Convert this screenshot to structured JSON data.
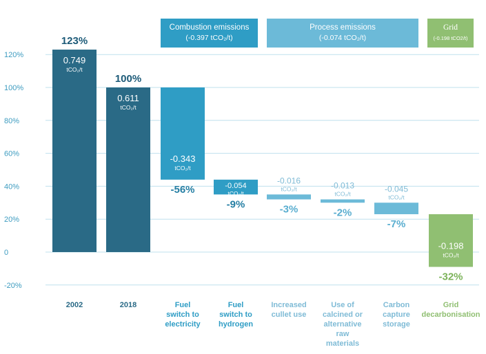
{
  "colors": {
    "base": "#2a6a86",
    "combustion": "#2f9dc5",
    "process": "#6cbad8",
    "grid": "#90bf72",
    "axis_text": "#3e9cc0",
    "gridline": "#bfe0ee",
    "pct_base": "#1c5a78",
    "pct_comb": "#267fa4",
    "pct_proc": "#5aaed0",
    "pct_grid": "#7cb35a",
    "label_proc": "#7fbbd6"
  },
  "headers": {
    "combustion": {
      "line1": "Combustion emissions",
      "line2": "(-0.397 tCO₂/t)"
    },
    "process": {
      "line1": "Process emissions",
      "line2": "(-0.074 tCO₂/t)"
    },
    "grid": {
      "line1": "Grid",
      "line2": "(-0.198 tCO2/t)"
    }
  },
  "chart_data": {
    "type": "bar",
    "subtype": "waterfall",
    "ylim": [
      -20,
      125
    ],
    "yticks": [
      -20,
      0,
      20,
      40,
      60,
      80,
      100,
      120
    ],
    "ytick_labels": [
      "-20%",
      "0",
      "20%",
      "40%",
      "60%",
      "80%",
      "100%",
      "120%"
    ],
    "grid": true,
    "categories": [
      [
        "2002"
      ],
      [
        "2018"
      ],
      [
        "Fuel",
        "switch to",
        "electricity"
      ],
      [
        "Fuel",
        "switch to",
        "hydrogen"
      ],
      [
        "Increased",
        "cullet use"
      ],
      [
        "Use of",
        "calcined or",
        "alternative",
        "raw",
        "materials"
      ],
      [
        "Carbon",
        "capture",
        "storage"
      ],
      [
        "Grid",
        "decarbonisation"
      ]
    ],
    "bars": [
      {
        "kind": "base",
        "start": 0,
        "end": 123,
        "group": "base",
        "value": "0.749",
        "unit": "tCO₂/t",
        "pct": "123%",
        "pct_pos": "above",
        "value_pos": "inside"
      },
      {
        "kind": "base",
        "start": 0,
        "end": 100,
        "group": "base",
        "value": "0.611",
        "unit": "tCO₂/t",
        "pct": "100%",
        "pct_pos": "above",
        "value_pos": "inside"
      },
      {
        "kind": "delta",
        "start": 100,
        "end": 44,
        "group": "combustion",
        "value": "-0.343",
        "unit": "tCO₂/t",
        "pct": "-56%",
        "pct_pos": "below",
        "value_pos": "inside"
      },
      {
        "kind": "delta",
        "start": 44,
        "end": 35,
        "group": "combustion",
        "value": "-0.054",
        "unit": "tCO₂/t",
        "pct": "-9%",
        "pct_pos": "below",
        "value_pos": "inside"
      },
      {
        "kind": "delta",
        "start": 35,
        "end": 32,
        "group": "process",
        "value": "-0.016",
        "unit": "tCO₂/t",
        "pct": "-3%",
        "pct_pos": "below",
        "value_pos": "above"
      },
      {
        "kind": "delta",
        "start": 32,
        "end": 30,
        "group": "process",
        "value": "-0.013",
        "unit": "tCO₂/t",
        "pct": "-2%",
        "pct_pos": "below",
        "value_pos": "above"
      },
      {
        "kind": "delta",
        "start": 30,
        "end": 23,
        "group": "process",
        "value": "-0.045",
        "unit": "tCO₂/t",
        "pct": "-7%",
        "pct_pos": "below",
        "value_pos": "above"
      },
      {
        "kind": "delta",
        "start": 23,
        "end": -9,
        "group": "grid",
        "value": "-0.198",
        "unit": "tCO₂/t",
        "pct": "-32%",
        "pct_pos": "below",
        "value_pos": "inside"
      }
    ]
  }
}
